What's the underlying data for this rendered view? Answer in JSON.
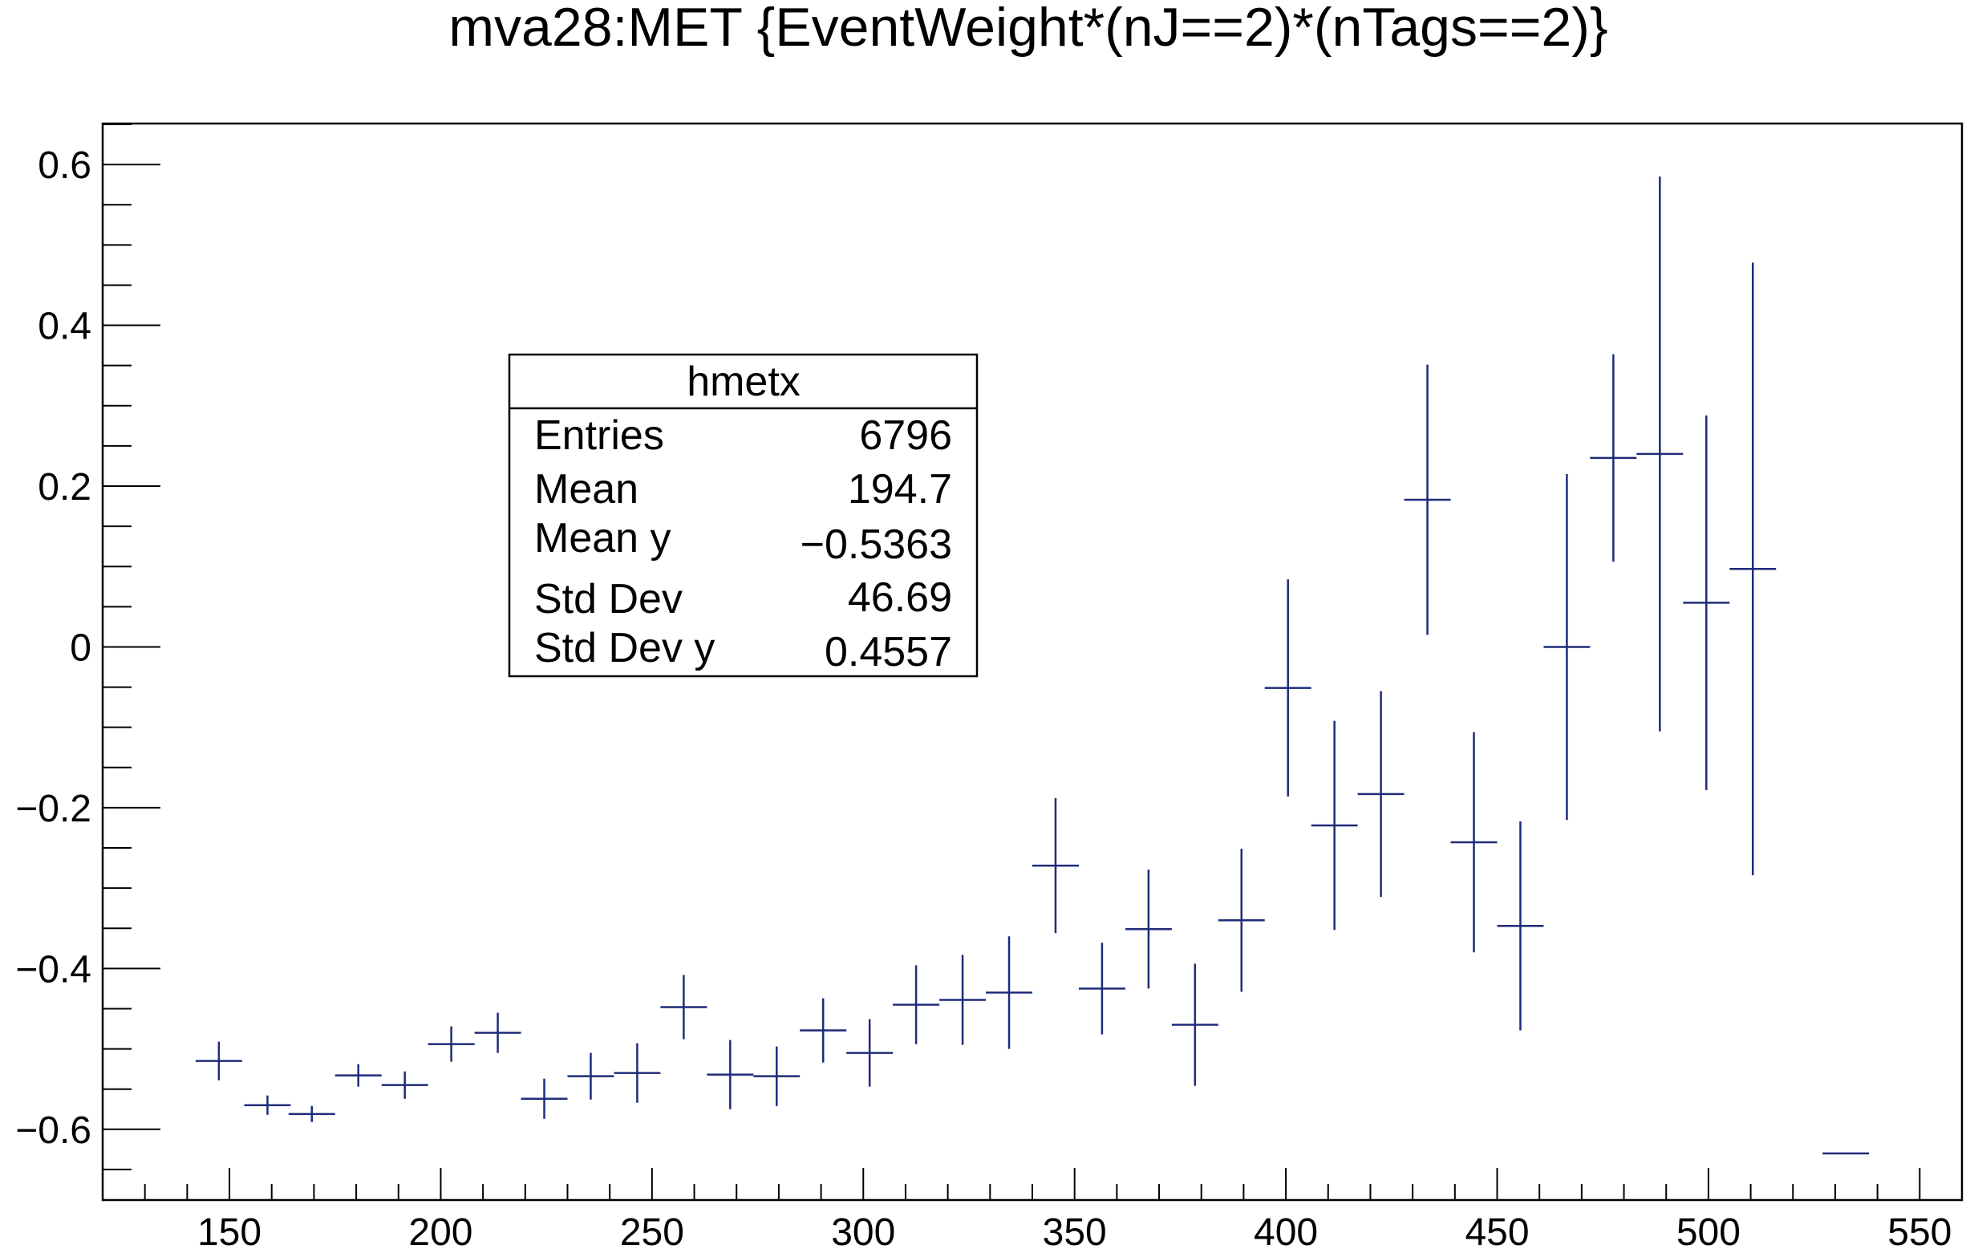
{
  "chart_data": {
    "type": "scatter",
    "title": "mva28:MET {EventWeight*(nJ==2)*(nTags==2)}",
    "xlabel": "",
    "ylabel": "",
    "xlim": [
      120,
      560
    ],
    "ylim": [
      -0.688,
      0.651
    ],
    "x_ticks": [
      "150",
      "200",
      "250",
      "300",
      "350",
      "400",
      "450",
      "500",
      "550"
    ],
    "y_ticks": [
      "0.6",
      "0.4",
      "0.2",
      "0",
      "−0.2",
      "−0.4",
      "−0.6"
    ],
    "grid": false,
    "series_color": "#1f2b7a",
    "series": [
      {
        "points": [
          {
            "x": 147.5,
            "xerr": 5.5,
            "y": -0.515,
            "yerr": 0.024
          },
          {
            "x": 159.0,
            "xerr": 5.5,
            "y": -0.57,
            "yerr": 0.012
          },
          {
            "x": 169.5,
            "xerr": 5.5,
            "y": -0.581,
            "yerr": 0.01
          },
          {
            "x": 180.5,
            "xerr": 5.5,
            "y": -0.533,
            "yerr": 0.014
          },
          {
            "x": 191.5,
            "xerr": 5.5,
            "y": -0.545,
            "yerr": 0.017
          },
          {
            "x": 202.5,
            "xerr": 5.5,
            "y": -0.494,
            "yerr": 0.022
          },
          {
            "x": 213.5,
            "xerr": 5.5,
            "y": -0.48,
            "yerr": 0.025
          },
          {
            "x": 224.5,
            "xerr": 5.5,
            "y": -0.562,
            "yerr": 0.025
          },
          {
            "x": 235.5,
            "xerr": 5.5,
            "y": -0.534,
            "yerr": 0.029
          },
          {
            "x": 246.5,
            "xerr": 5.5,
            "y": -0.53,
            "yerr": 0.037
          },
          {
            "x": 257.5,
            "xerr": 5.5,
            "y": -0.448,
            "yerr": 0.04
          },
          {
            "x": 268.5,
            "xerr": 5.5,
            "y": -0.532,
            "yerr": 0.043
          },
          {
            "x": 279.5,
            "xerr": 5.5,
            "y": -0.534,
            "yerr": 0.037
          },
          {
            "x": 290.5,
            "xerr": 5.5,
            "y": -0.477,
            "yerr": 0.04
          },
          {
            "x": 301.5,
            "xerr": 5.5,
            "y": -0.505,
            "yerr": 0.042
          },
          {
            "x": 312.5,
            "xerr": 5.5,
            "y": -0.445,
            "yerr": 0.049
          },
          {
            "x": 323.5,
            "xerr": 5.5,
            "y": -0.439,
            "yerr": 0.056
          },
          {
            "x": 334.5,
            "xerr": 5.5,
            "y": -0.43,
            "yerr": 0.07
          },
          {
            "x": 345.5,
            "xerr": 5.5,
            "y": -0.272,
            "yerr": 0.084
          },
          {
            "x": 356.5,
            "xerr": 5.5,
            "y": -0.425,
            "yerr": 0.057
          },
          {
            "x": 367.5,
            "xerr": 5.5,
            "y": -0.351,
            "yerr": 0.074
          },
          {
            "x": 378.5,
            "xerr": 5.5,
            "y": -0.47,
            "yerr": 0.076
          },
          {
            "x": 389.5,
            "xerr": 5.5,
            "y": -0.34,
            "yerr": 0.089
          },
          {
            "x": 400.5,
            "xerr": 5.5,
            "y": -0.051,
            "yerr": 0.135
          },
          {
            "x": 411.5,
            "xerr": 5.5,
            "y": -0.222,
            "yerr": 0.13
          },
          {
            "x": 422.5,
            "xerr": 5.5,
            "y": -0.183,
            "yerr": 0.128
          },
          {
            "x": 433.5,
            "xerr": 5.5,
            "y": 0.183,
            "yerr": 0.168
          },
          {
            "x": 444.5,
            "xerr": 5.5,
            "y": -0.243,
            "yerr": 0.137
          },
          {
            "x": 455.5,
            "xerr": 5.5,
            "y": -0.347,
            "yerr": 0.13
          },
          {
            "x": 466.5,
            "xerr": 5.5,
            "y": 0.0,
            "yerr": 0.215
          },
          {
            "x": 477.5,
            "xerr": 5.5,
            "y": 0.235,
            "yerr": 0.129
          },
          {
            "x": 488.5,
            "xerr": 5.5,
            "y": 0.24,
            "yerr": 0.345
          },
          {
            "x": 499.5,
            "xerr": 5.5,
            "y": 0.055,
            "yerr": 0.233
          },
          {
            "x": 510.5,
            "xerr": 5.5,
            "y": 0.097,
            "yerr": 0.381
          },
          {
            "x": 532.5,
            "xerr": 5.5,
            "y": -0.63,
            "yerr": 0.0
          }
        ]
      }
    ],
    "stats_box": {
      "title": "hmetx",
      "rows": [
        {
          "label": "Entries",
          "value": "6796"
        },
        {
          "label": "Mean",
          "value": "194.7"
        },
        {
          "label": "Mean y",
          "value": "−0.5363"
        },
        {
          "label": "Std Dev",
          "value": "46.69"
        },
        {
          "label": "Std Dev y",
          "value": "0.4557"
        }
      ]
    }
  }
}
